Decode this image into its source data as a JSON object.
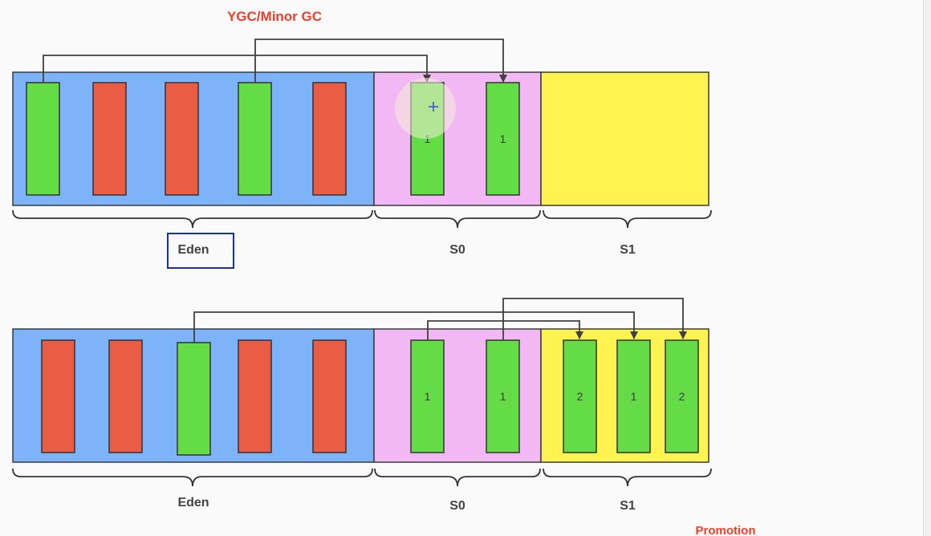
{
  "title": "YGC/Minor GC",
  "footer_label": "Promotion",
  "colors": {
    "eden": "#7db3f8",
    "s0": "#f1b8f4",
    "s1": "#fff350",
    "live": "#63dc46",
    "dead": "#eb5c44",
    "title": "#e8412c",
    "arrow": "#404040",
    "highlight_box": "#1a2fb0"
  },
  "top": {
    "eden_label": "Eden",
    "s0_label": "S0",
    "s1_label": "S1",
    "eden_objects": [
      {
        "kind": "live",
        "age": ""
      },
      {
        "kind": "dead",
        "age": ""
      },
      {
        "kind": "dead",
        "age": ""
      },
      {
        "kind": "live",
        "age": ""
      },
      {
        "kind": "dead",
        "age": ""
      }
    ],
    "s0_objects": [
      {
        "kind": "live",
        "age": "1"
      },
      {
        "kind": "live",
        "age": "1"
      }
    ],
    "s1_objects": []
  },
  "bottom": {
    "eden_label": "Eden",
    "s0_label": "S0",
    "s1_label": "S1",
    "eden_objects": [
      {
        "kind": "dead",
        "age": ""
      },
      {
        "kind": "dead",
        "age": ""
      },
      {
        "kind": "live",
        "age": ""
      },
      {
        "kind": "dead",
        "age": ""
      },
      {
        "kind": "dead",
        "age": ""
      }
    ],
    "s0_objects": [
      {
        "kind": "live",
        "age": "1"
      },
      {
        "kind": "live",
        "age": "1"
      }
    ],
    "s1_objects": [
      {
        "kind": "live",
        "age": "2"
      },
      {
        "kind": "live",
        "age": "1"
      },
      {
        "kind": "live",
        "age": "2"
      }
    ]
  }
}
